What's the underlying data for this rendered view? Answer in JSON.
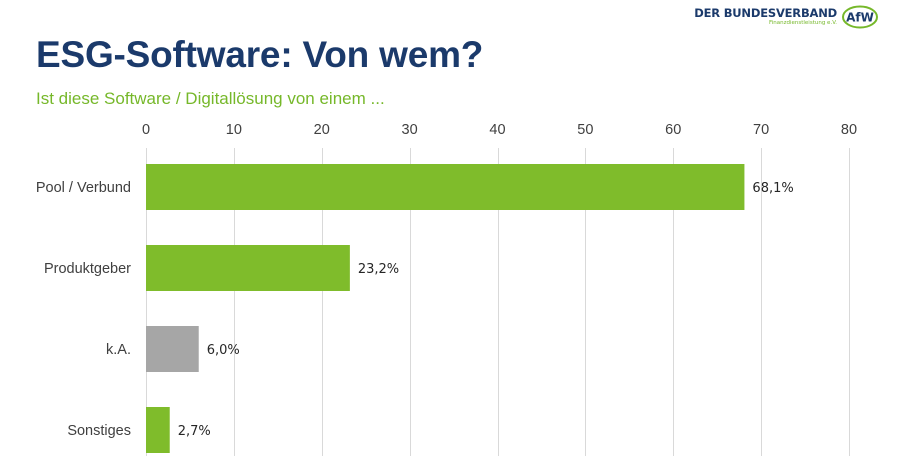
{
  "header": {
    "title": "ESG-Software: Von wem?",
    "subtitle": "Ist diese Software / Digitallösung von einem ..."
  },
  "logo": {
    "line1": "DER BUNDESVERBAND",
    "line2": "Finanzdienstleistung e.V.",
    "mark": "AfW"
  },
  "colors": {
    "title": "#1b3a6b",
    "accent_green": "#76b82a",
    "bar_green": "#7fbc2b",
    "bar_gray": "#a6a6a6",
    "grid": "#d9d9d9"
  },
  "chart_data": {
    "type": "bar",
    "orientation": "horizontal",
    "categories": [
      "Pool / Verbund",
      "Produktgeber",
      "k.A.",
      "Sonstiges"
    ],
    "values": [
      68.1,
      23.2,
      6.0,
      2.7
    ],
    "value_labels": [
      "68,1%",
      "23,2%",
      "6,0%",
      "2,7%"
    ],
    "bar_colors": [
      "#7fbc2b",
      "#7fbc2b",
      "#a6a6a6",
      "#7fbc2b"
    ],
    "xlim": [
      0,
      80
    ],
    "xticks": [
      "0",
      "10",
      "20",
      "30",
      "40",
      "50",
      "60",
      "70",
      "80"
    ],
    "x_axis_position": "top",
    "grid": true,
    "legend": "none"
  }
}
